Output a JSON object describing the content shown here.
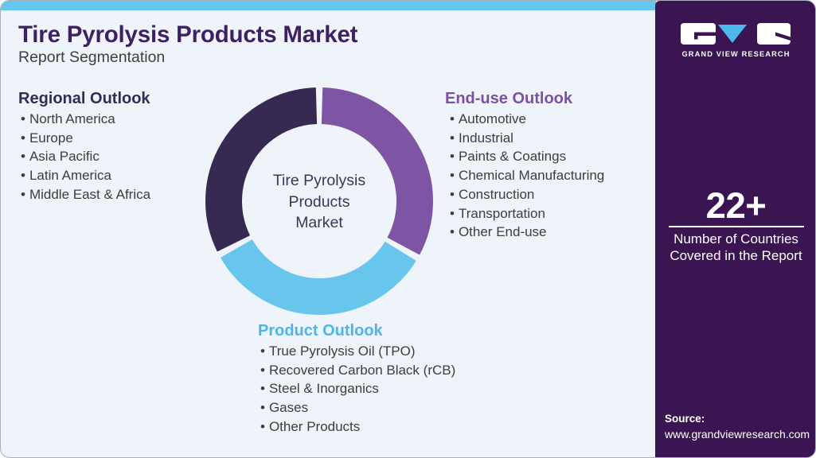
{
  "page": {
    "title": "Tire Pyrolysis Products Market",
    "subtitle": "Report Segmentation"
  },
  "colors": {
    "top_bar": "#65c6f0",
    "main_bg": "#eff4fa",
    "title": "#3e2163",
    "sidebar_bg": "#3b1551",
    "regional": "#332b56",
    "end_use": "#7b4fa1",
    "product": "#4db5e9",
    "accent_blue": "#4db9ea"
  },
  "sections": {
    "regional": {
      "heading": "Regional Outlook",
      "items": [
        "North America",
        "Europe",
        "Asia Pacific",
        "Latin America",
        "Middle East & Africa"
      ]
    },
    "end_use": {
      "heading": "End-use Outlook",
      "items": [
        "Automotive",
        "Industrial",
        "Paints & Coatings",
        "Chemical Manufacturing",
        "Construction",
        "Transportation",
        "Other End-use"
      ]
    },
    "product": {
      "heading": "Product Outlook",
      "items": [
        "True Pyrolysis Oil (TPO)",
        "Recovered Carbon Black (rCB)",
        "Steel & Inorganics",
        "Gases",
        "Other Products"
      ]
    }
  },
  "chart_data": {
    "type": "pie",
    "subtype": "donut",
    "title": "Tire Pyrolysis Products Market",
    "center_label_lines": [
      "Tire Pyrolysis",
      "Products",
      "Market"
    ],
    "segments": [
      {
        "label": "End-use Outlook",
        "value": 33.3,
        "color": "#7e55a4"
      },
      {
        "label": "Product Outlook",
        "value": 33.9,
        "color": "#68c6ec"
      },
      {
        "label": "Regional Outlook",
        "value": 32.8,
        "color": "#372a52"
      }
    ],
    "legend_position": "none",
    "start_angle_deg": 0
  },
  "sidebar": {
    "brand": "GRAND VIEW RESEARCH",
    "stat_value": "22+",
    "stat_label_lines": [
      "Number of Countries",
      "Covered in the Report"
    ],
    "source_label": "Source:",
    "source_url": "www.grandviewresearch.com"
  }
}
